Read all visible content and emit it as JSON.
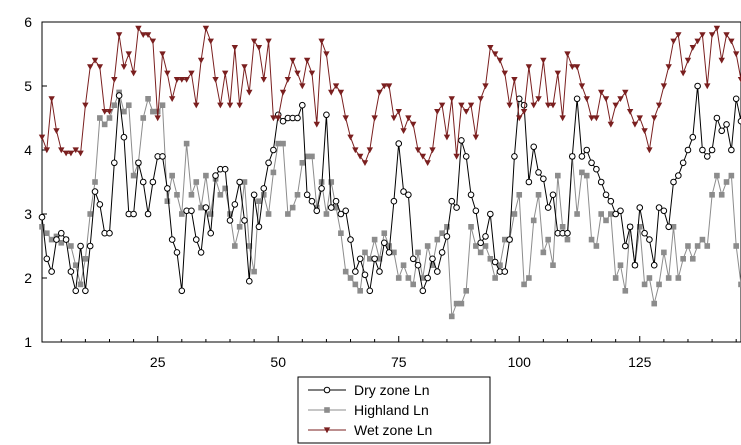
{
  "chart_data": {
    "type": "line",
    "title": "",
    "xlabel": "",
    "ylabel": "",
    "xlim": [
      1,
      146
    ],
    "ylim": [
      1,
      6
    ],
    "x_ticks": [
      25,
      50,
      75,
      100,
      125
    ],
    "y_ticks": [
      1,
      2,
      3,
      4,
      5,
      6
    ],
    "grid": false,
    "legend_position": "bottom-center",
    "series": [
      {
        "name": "Dry zone Ln",
        "color": "#000000",
        "marker": "circle-open",
        "values": [
          2.95,
          2.3,
          2.1,
          2.6,
          2.7,
          2.6,
          2.1,
          1.8,
          2.5,
          1.8,
          2.5,
          3.35,
          3.15,
          2.7,
          2.7,
          3.8,
          4.85,
          4.2,
          3.0,
          3.0,
          3.8,
          3.5,
          3.0,
          3.5,
          3.9,
          3.9,
          3.4,
          2.6,
          2.4,
          1.8,
          3.05,
          3.05,
          2.6,
          2.4,
          3.1,
          2.7,
          3.6,
          3.7,
          3.7,
          2.9,
          3.15,
          3.5,
          2.9,
          1.95,
          3.3,
          2.8,
          3.4,
          3.8,
          4.0,
          4.55,
          4.45,
          4.5,
          4.5,
          4.5,
          4.7,
          3.3,
          3.2,
          3.05,
          3.4,
          4.55,
          3.1,
          3.2,
          3.0,
          3.05,
          2.6,
          2.1,
          2.3,
          2.05,
          1.8,
          2.3,
          2.1,
          2.55,
          2.4,
          3.2,
          4.1,
          3.35,
          3.3,
          2.3,
          2.2,
          1.8,
          2.0,
          2.3,
          2.1,
          2.4,
          2.65,
          3.2,
          3.1,
          4.15,
          3.9,
          3.3,
          3.05,
          2.55,
          2.65,
          3.0,
          2.25,
          2.1,
          2.1,
          2.6,
          3.9,
          4.8,
          4.7,
          3.5,
          4.05,
          3.65,
          3.55,
          3.1,
          3.3,
          2.7,
          2.7,
          2.7,
          3.9,
          4.8,
          3.9,
          4.0,
          3.8,
          3.7,
          3.5,
          3.3,
          3.2,
          3.0,
          3.05,
          2.5,
          2.8,
          2.2,
          3.1,
          2.7,
          2.6,
          2.2,
          3.1,
          3.05,
          2.8,
          3.5,
          3.6,
          3.8,
          4.0,
          4.2,
          5.0,
          4.0,
          3.9,
          4.0,
          4.5,
          4.3,
          4.4,
          4.0,
          4.8,
          4.45
        ]
      },
      {
        "name": "Highland Ln",
        "color": "#8c8c8c",
        "marker": "square",
        "values": [
          2.8,
          2.7,
          2.6,
          2.65,
          2.55,
          2.6,
          2.5,
          2.2,
          1.9,
          2.3,
          3.0,
          3.5,
          4.5,
          4.4,
          4.5,
          4.7,
          4.9,
          4.6,
          4.7,
          3.6,
          3.8,
          4.5,
          4.8,
          4.6,
          4.6,
          4.7,
          3.2,
          3.6,
          3.3,
          3.0,
          4.1,
          3.3,
          3.5,
          3.1,
          3.6,
          3.0,
          3.55,
          3.3,
          3.4,
          3.0,
          2.5,
          2.8,
          3.5,
          2.5,
          2.1,
          3.2,
          3.3,
          3.0,
          3.65,
          4.1,
          4.1,
          3.0,
          3.1,
          3.3,
          3.8,
          3.9,
          3.9,
          3.1,
          3.5,
          3.0,
          3.5,
          3.1,
          2.7,
          2.1,
          2.0,
          1.9,
          1.8,
          2.4,
          2.3,
          2.6,
          2.3,
          2.7,
          2.5,
          2.4,
          2.0,
          2.2,
          2.0,
          1.9,
          2.4,
          2.0,
          2.5,
          2.2,
          2.6,
          2.7,
          2.8,
          1.4,
          1.6,
          1.6,
          1.8,
          2.8,
          2.5,
          2.4,
          2.5,
          2.3,
          2.0,
          2.2,
          2.6,
          2.6,
          3.0,
          3.3,
          1.9,
          2.0,
          2.9,
          3.3,
          2.4,
          2.6,
          2.2,
          3.6,
          2.8,
          2.6,
          3.9,
          3.0,
          3.65,
          3.6,
          2.6,
          2.5,
          3.0,
          2.9,
          3.0,
          2.0,
          2.2,
          1.8,
          2.8,
          2.2,
          2.8,
          1.9,
          2.0,
          1.6,
          1.9,
          2.4,
          2.0,
          2.8,
          2.0,
          2.3,
          2.5,
          2.3,
          2.5,
          2.6,
          2.5,
          3.3,
          3.6,
          3.3,
          3.5,
          3.6,
          2.5,
          1.9
        ]
      },
      {
        "name": "Wet zone Ln",
        "color": "#7a1f1f",
        "marker": "triangle-down",
        "values": [
          4.2,
          4.0,
          4.8,
          4.3,
          4.0,
          3.95,
          3.95,
          4.0,
          3.95,
          4.7,
          5.3,
          5.4,
          5.3,
          4.6,
          4.6,
          5.1,
          5.8,
          5.3,
          5.5,
          5.2,
          5.9,
          5.8,
          5.8,
          5.7,
          4.5,
          5.5,
          5.2,
          4.8,
          5.1,
          5.1,
          5.1,
          5.2,
          4.7,
          5.4,
          5.9,
          5.7,
          5.1,
          4.7,
          5.2,
          4.7,
          5.6,
          4.7,
          5.3,
          4.9,
          5.7,
          5.6,
          5.1,
          5.7,
          4.5,
          4.5,
          4.9,
          5.1,
          5.4,
          5.2,
          5.0,
          5.4,
          5.2,
          4.4,
          5.7,
          5.5,
          4.9,
          5.0,
          4.9,
          4.5,
          4.2,
          4.0,
          3.9,
          3.8,
          4.0,
          4.5,
          4.9,
          5.0,
          5.0,
          4.5,
          4.6,
          4.3,
          4.5,
          4.4,
          4.0,
          3.9,
          3.8,
          4.0,
          4.6,
          4.7,
          4.2,
          4.8,
          3.9,
          4.7,
          4.6,
          4.7,
          4.2,
          4.8,
          5.0,
          5.6,
          5.5,
          5.4,
          5.2,
          4.7,
          5.1,
          4.5,
          4.6,
          5.3,
          4.7,
          4.8,
          5.4,
          4.7,
          4.7,
          5.2,
          4.5,
          5.5,
          5.3,
          5.3,
          5.0,
          4.8,
          4.5,
          4.5,
          4.9,
          4.8,
          4.4,
          4.7,
          4.8,
          4.9,
          4.6,
          4.4,
          4.5,
          4.3,
          4.0,
          4.5,
          4.7,
          5.0,
          5.3,
          5.7,
          5.8,
          5.2,
          5.4,
          5.6,
          5.7,
          5.8,
          5.0,
          5.8,
          5.9,
          5.4,
          5.8,
          5.7,
          5.5,
          5.1
        ]
      }
    ]
  }
}
